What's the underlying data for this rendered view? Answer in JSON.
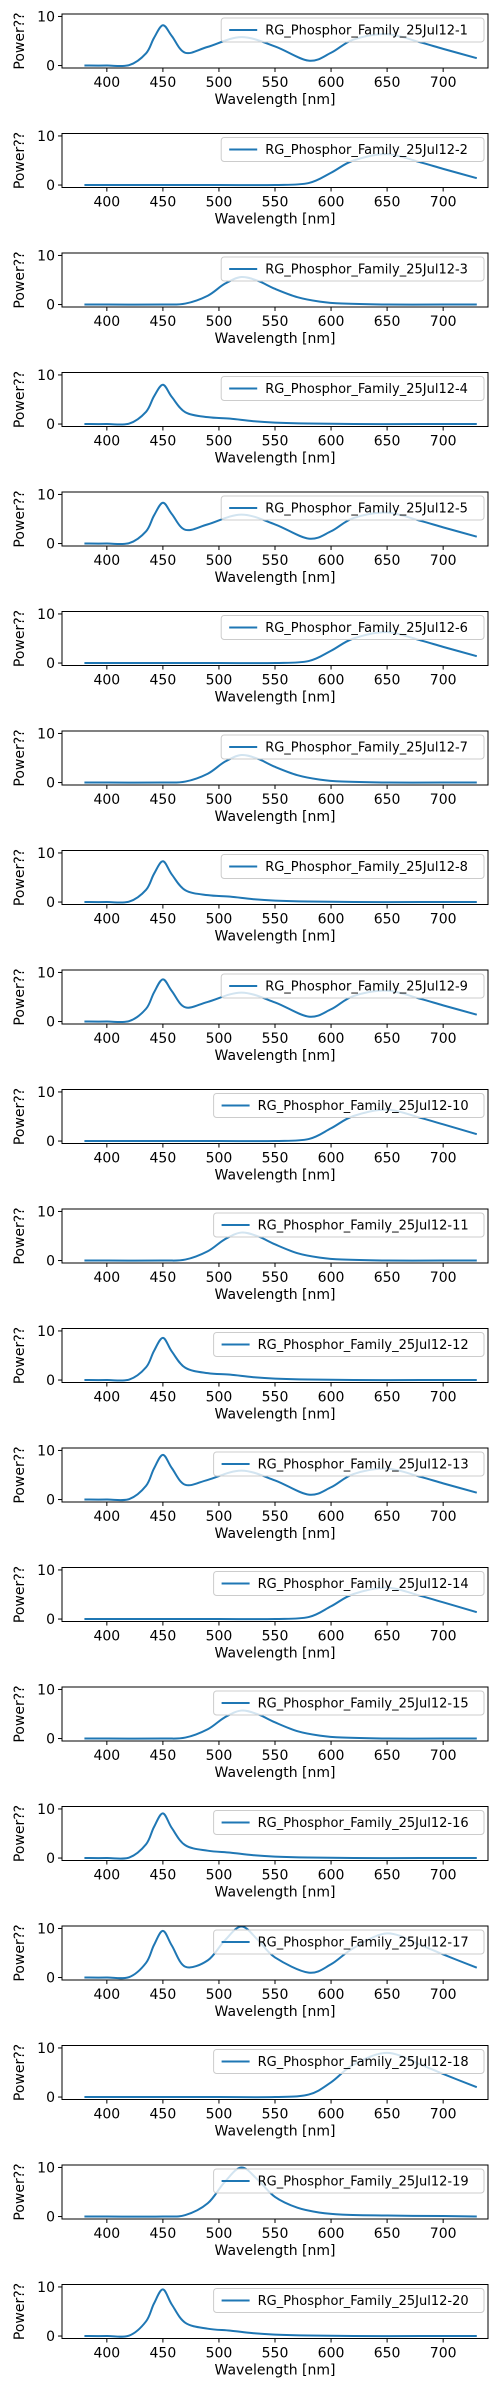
{
  "colors": {
    "series": "#1f77b4",
    "axes": "#000000",
    "legend_border": "#cccccc",
    "background": "#ffffff"
  },
  "shared_axes": {
    "xlabel": "Wavelength [nm]",
    "ylabel": "Power??",
    "xlim": [
      360,
      740
    ],
    "ylim": [
      -0.5,
      10.5
    ],
    "xticks": [
      400,
      450,
      500,
      550,
      600,
      650,
      700
    ],
    "yticks": [
      0,
      10
    ],
    "legend_position": "upper right",
    "grid": false
  },
  "chart_data": [
    {
      "type": "line",
      "xlabel": "Wavelength [nm]",
      "ylabel": "Power??",
      "xlim": [
        360,
        740
      ],
      "ylim": [
        -0.5,
        10.5
      ],
      "x": [
        380,
        400,
        420,
        435,
        442,
        450,
        458,
        470,
        490,
        520,
        550,
        580,
        600,
        620,
        650,
        680,
        700,
        730
      ],
      "series": [
        {
          "name": "RG_Phosphor_Family_25Jul12-1",
          "values": [
            0,
            0,
            0.1,
            2.5,
            5.6,
            8.2,
            6.0,
            2.6,
            3.8,
            5.8,
            3.9,
            1.0,
            2.6,
            5.3,
            6.4,
            4.7,
            3.4,
            1.5
          ]
        }
      ]
    },
    {
      "type": "line",
      "xlabel": "Wavelength [nm]",
      "ylabel": "Power??",
      "xlim": [
        360,
        740
      ],
      "ylim": [
        -0.5,
        10.5
      ],
      "x": [
        380,
        400,
        420,
        450,
        500,
        550,
        580,
        600,
        620,
        650,
        680,
        700,
        730
      ],
      "series": [
        {
          "name": "RG_Phosphor_Family_25Jul12-2",
          "values": [
            0,
            0,
            0,
            0,
            0,
            0,
            0.4,
            2.5,
            5.0,
            6.3,
            4.6,
            3.3,
            1.4
          ]
        }
      ]
    },
    {
      "type": "line",
      "xlabel": "Wavelength [nm]",
      "ylabel": "Power??",
      "xlim": [
        360,
        740
      ],
      "ylim": [
        -0.5,
        10.5
      ],
      "x": [
        380,
        400,
        450,
        470,
        490,
        505,
        520,
        535,
        550,
        570,
        590,
        610,
        650,
        700,
        730
      ],
      "series": [
        {
          "name": "RG_Phosphor_Family_25Jul12-3",
          "values": [
            0,
            0,
            0,
            0.2,
            1.8,
            4.2,
            5.6,
            4.8,
            3.2,
            1.5,
            0.6,
            0.2,
            0,
            0,
            0
          ]
        }
      ]
    },
    {
      "type": "line",
      "xlabel": "Wavelength [nm]",
      "ylabel": "Power??",
      "xlim": [
        360,
        740
      ],
      "ylim": [
        -0.5,
        10.5
      ],
      "x": [
        380,
        400,
        420,
        435,
        442,
        450,
        458,
        470,
        490,
        510,
        530,
        550,
        580,
        620,
        680,
        730
      ],
      "series": [
        {
          "name": "RG_Phosphor_Family_25Jul12-4",
          "values": [
            0,
            0,
            0.1,
            2.5,
            5.6,
            8.0,
            5.5,
            2.4,
            1.4,
            1.1,
            0.6,
            0.3,
            0.1,
            0,
            0,
            0
          ]
        }
      ]
    },
    {
      "type": "line",
      "xlabel": "Wavelength [nm]",
      "ylabel": "Power??",
      "xlim": [
        360,
        740
      ],
      "ylim": [
        -0.5,
        10.5
      ],
      "x": [
        380,
        400,
        420,
        435,
        442,
        450,
        458,
        470,
        490,
        520,
        550,
        580,
        600,
        620,
        650,
        680,
        700,
        730
      ],
      "series": [
        {
          "name": "RG_Phosphor_Family_25Jul12-5",
          "values": [
            0,
            0,
            0.1,
            2.5,
            5.7,
            8.3,
            6.0,
            2.8,
            3.9,
            5.9,
            3.9,
            1.0,
            2.5,
            5.2,
            6.3,
            4.6,
            3.3,
            1.4
          ]
        }
      ]
    },
    {
      "type": "line",
      "xlabel": "Wavelength [nm]",
      "ylabel": "Power??",
      "xlim": [
        360,
        740
      ],
      "ylim": [
        -0.5,
        10.5
      ],
      "x": [
        380,
        400,
        420,
        450,
        500,
        550,
        580,
        600,
        620,
        650,
        680,
        700,
        730
      ],
      "series": [
        {
          "name": "RG_Phosphor_Family_25Jul12-6",
          "values": [
            0,
            0,
            0,
            0,
            0,
            0,
            0.4,
            2.5,
            5.0,
            6.3,
            4.6,
            3.3,
            1.4
          ]
        }
      ]
    },
    {
      "type": "line",
      "xlabel": "Wavelength [nm]",
      "ylabel": "Power??",
      "xlim": [
        360,
        740
      ],
      "ylim": [
        -0.5,
        10.5
      ],
      "x": [
        380,
        400,
        450,
        470,
        490,
        505,
        520,
        535,
        550,
        570,
        590,
        610,
        650,
        700,
        730
      ],
      "series": [
        {
          "name": "RG_Phosphor_Family_25Jul12-7",
          "values": [
            0,
            0,
            0,
            0.2,
            1.8,
            4.2,
            5.6,
            4.8,
            3.2,
            1.5,
            0.6,
            0.2,
            0,
            0,
            0
          ]
        }
      ]
    },
    {
      "type": "line",
      "xlabel": "Wavelength [nm]",
      "ylabel": "Power??",
      "xlim": [
        360,
        740
      ],
      "ylim": [
        -0.5,
        10.5
      ],
      "x": [
        380,
        400,
        420,
        435,
        442,
        450,
        458,
        470,
        490,
        510,
        530,
        550,
        580,
        620,
        680,
        730
      ],
      "series": [
        {
          "name": "RG_Phosphor_Family_25Jul12-8",
          "values": [
            0,
            0,
            0.1,
            2.5,
            5.7,
            8.3,
            5.6,
            2.4,
            1.4,
            1.1,
            0.6,
            0.3,
            0.1,
            0,
            0,
            0
          ]
        }
      ]
    },
    {
      "type": "line",
      "xlabel": "Wavelength [nm]",
      "ylabel": "Power??",
      "xlim": [
        360,
        740
      ],
      "ylim": [
        -0.5,
        10.5
      ],
      "x": [
        380,
        400,
        420,
        435,
        442,
        450,
        458,
        470,
        490,
        520,
        550,
        580,
        600,
        620,
        650,
        680,
        700,
        730
      ],
      "series": [
        {
          "name": "RG_Phosphor_Family_25Jul12-9",
          "values": [
            0,
            0,
            0.1,
            2.6,
            5.9,
            8.6,
            6.2,
            2.9,
            4.0,
            5.9,
            3.9,
            1.0,
            2.5,
            5.2,
            6.3,
            4.6,
            3.3,
            1.4
          ]
        }
      ]
    },
    {
      "type": "line",
      "xlabel": "Wavelength [nm]",
      "ylabel": "Power??",
      "xlim": [
        360,
        740
      ],
      "ylim": [
        -0.5,
        10.5
      ],
      "x": [
        380,
        400,
        420,
        450,
        500,
        550,
        580,
        600,
        620,
        650,
        680,
        700,
        730
      ],
      "series": [
        {
          "name": "RG_Phosphor_Family_25Jul12-10",
          "values": [
            0,
            0,
            0,
            0,
            0,
            0,
            0.4,
            2.6,
            5.1,
            6.4,
            4.7,
            3.4,
            1.4
          ]
        }
      ]
    },
    {
      "type": "line",
      "xlabel": "Wavelength [nm]",
      "ylabel": "Power??",
      "xlim": [
        360,
        740
      ],
      "ylim": [
        -0.5,
        10.5
      ],
      "x": [
        380,
        400,
        450,
        470,
        490,
        505,
        520,
        535,
        550,
        570,
        590,
        610,
        650,
        700,
        730
      ],
      "series": [
        {
          "name": "RG_Phosphor_Family_25Jul12-11",
          "values": [
            0,
            0,
            0,
            0.2,
            1.9,
            4.3,
            5.7,
            4.9,
            3.3,
            1.5,
            0.6,
            0.2,
            0,
            0,
            0
          ]
        }
      ]
    },
    {
      "type": "line",
      "xlabel": "Wavelength [nm]",
      "ylabel": "Power??",
      "xlim": [
        360,
        740
      ],
      "ylim": [
        -0.5,
        10.5
      ],
      "x": [
        380,
        400,
        420,
        435,
        442,
        450,
        458,
        470,
        490,
        510,
        530,
        550,
        580,
        620,
        680,
        730
      ],
      "series": [
        {
          "name": "RG_Phosphor_Family_25Jul12-12",
          "values": [
            0,
            0,
            0.1,
            2.6,
            5.9,
            8.6,
            5.8,
            2.5,
            1.4,
            1.1,
            0.6,
            0.3,
            0.1,
            0,
            0,
            0
          ]
        }
      ]
    },
    {
      "type": "line",
      "xlabel": "Wavelength [nm]",
      "ylabel": "Power??",
      "xlim": [
        360,
        740
      ],
      "ylim": [
        -0.5,
        10.5
      ],
      "x": [
        380,
        400,
        420,
        435,
        442,
        450,
        458,
        470,
        490,
        520,
        550,
        580,
        600,
        620,
        650,
        680,
        700,
        730
      ],
      "series": [
        {
          "name": "RG_Phosphor_Family_25Jul12-13",
          "values": [
            0,
            0,
            0.1,
            2.8,
            6.3,
            9.1,
            6.4,
            3.0,
            4.0,
            5.9,
            3.9,
            1.0,
            2.5,
            5.2,
            6.3,
            4.6,
            3.3,
            1.4
          ]
        }
      ]
    },
    {
      "type": "line",
      "xlabel": "Wavelength [nm]",
      "ylabel": "Power??",
      "xlim": [
        360,
        740
      ],
      "ylim": [
        -0.5,
        10.5
      ],
      "x": [
        380,
        400,
        420,
        450,
        500,
        550,
        580,
        600,
        620,
        650,
        680,
        700,
        730
      ],
      "series": [
        {
          "name": "RG_Phosphor_Family_25Jul12-14",
          "values": [
            0,
            0,
            0,
            0,
            0,
            0,
            0.4,
            2.6,
            5.1,
            6.4,
            4.7,
            3.4,
            1.4
          ]
        }
      ]
    },
    {
      "type": "line",
      "xlabel": "Wavelength [nm]",
      "ylabel": "Power??",
      "xlim": [
        360,
        740
      ],
      "ylim": [
        -0.5,
        10.5
      ],
      "x": [
        380,
        400,
        450,
        470,
        490,
        505,
        520,
        535,
        550,
        570,
        590,
        610,
        650,
        700,
        730
      ],
      "series": [
        {
          "name": "RG_Phosphor_Family_25Jul12-15",
          "values": [
            0,
            0,
            0,
            0.2,
            1.9,
            4.3,
            5.7,
            4.9,
            3.3,
            1.5,
            0.6,
            0.2,
            0,
            0,
            0
          ]
        }
      ]
    },
    {
      "type": "line",
      "xlabel": "Wavelength [nm]",
      "ylabel": "Power??",
      "xlim": [
        360,
        740
      ],
      "ylim": [
        -0.5,
        10.5
      ],
      "x": [
        380,
        400,
        420,
        435,
        442,
        450,
        458,
        470,
        490,
        510,
        530,
        550,
        580,
        620,
        680,
        730
      ],
      "series": [
        {
          "name": "RG_Phosphor_Family_25Jul12-16",
          "values": [
            0,
            0,
            0.1,
            2.8,
            6.3,
            9.1,
            6.1,
            2.6,
            1.5,
            1.1,
            0.6,
            0.3,
            0.1,
            0,
            0,
            0
          ]
        }
      ]
    },
    {
      "type": "line",
      "xlabel": "Wavelength [nm]",
      "ylabel": "Power??",
      "xlim": [
        360,
        740
      ],
      "ylim": [
        -0.5,
        10.5
      ],
      "x": [
        380,
        400,
        420,
        435,
        442,
        450,
        458,
        470,
        490,
        505,
        520,
        535,
        550,
        580,
        600,
        620,
        650,
        680,
        700,
        730
      ],
      "series": [
        {
          "name": "RG_Phosphor_Family_25Jul12-17",
          "values": [
            0,
            0,
            0.1,
            3.0,
            6.6,
            9.5,
            6.5,
            2.2,
            3.5,
            7.5,
            10.4,
            7.6,
            4.1,
            1.0,
            2.7,
            6.0,
            9.0,
            6.6,
            4.7,
            2.0
          ]
        }
      ]
    },
    {
      "type": "line",
      "xlabel": "Wavelength [nm]",
      "ylabel": "Power??",
      "xlim": [
        360,
        740
      ],
      "ylim": [
        -0.5,
        10.5
      ],
      "x": [
        380,
        400,
        420,
        450,
        500,
        550,
        580,
        600,
        620,
        650,
        680,
        700,
        730
      ],
      "series": [
        {
          "name": "RG_Phosphor_Family_25Jul12-18",
          "values": [
            0,
            0,
            0,
            0,
            0,
            0,
            0.5,
            3.0,
            6.6,
            9.0,
            6.6,
            4.7,
            2.0
          ]
        }
      ]
    },
    {
      "type": "line",
      "xlabel": "Wavelength [nm]",
      "ylabel": "Power??",
      "xlim": [
        360,
        740
      ],
      "ylim": [
        -0.5,
        10.5
      ],
      "x": [
        380,
        400,
        450,
        470,
        490,
        505,
        520,
        535,
        550,
        570,
        590,
        610,
        650,
        700,
        730
      ],
      "series": [
        {
          "name": "RG_Phosphor_Family_25Jul12-19",
          "values": [
            0,
            0,
            0,
            0.3,
            2.7,
            7.0,
            10.0,
            7.4,
            4.0,
            1.8,
            0.8,
            0.4,
            0.2,
            0.1,
            0
          ]
        }
      ]
    },
    {
      "type": "line",
      "xlabel": "Wavelength [nm]",
      "ylabel": "Power??",
      "xlim": [
        360,
        740
      ],
      "ylim": [
        -0.5,
        10.5
      ],
      "x": [
        380,
        400,
        420,
        435,
        442,
        450,
        458,
        470,
        490,
        510,
        530,
        550,
        580,
        620,
        680,
        730
      ],
      "series": [
        {
          "name": "RG_Phosphor_Family_25Jul12-20",
          "values": [
            0,
            0,
            0.1,
            3.0,
            6.6,
            9.5,
            6.4,
            2.7,
            1.5,
            1.1,
            0.6,
            0.3,
            0.1,
            0,
            0,
            0
          ]
        }
      ]
    }
  ]
}
